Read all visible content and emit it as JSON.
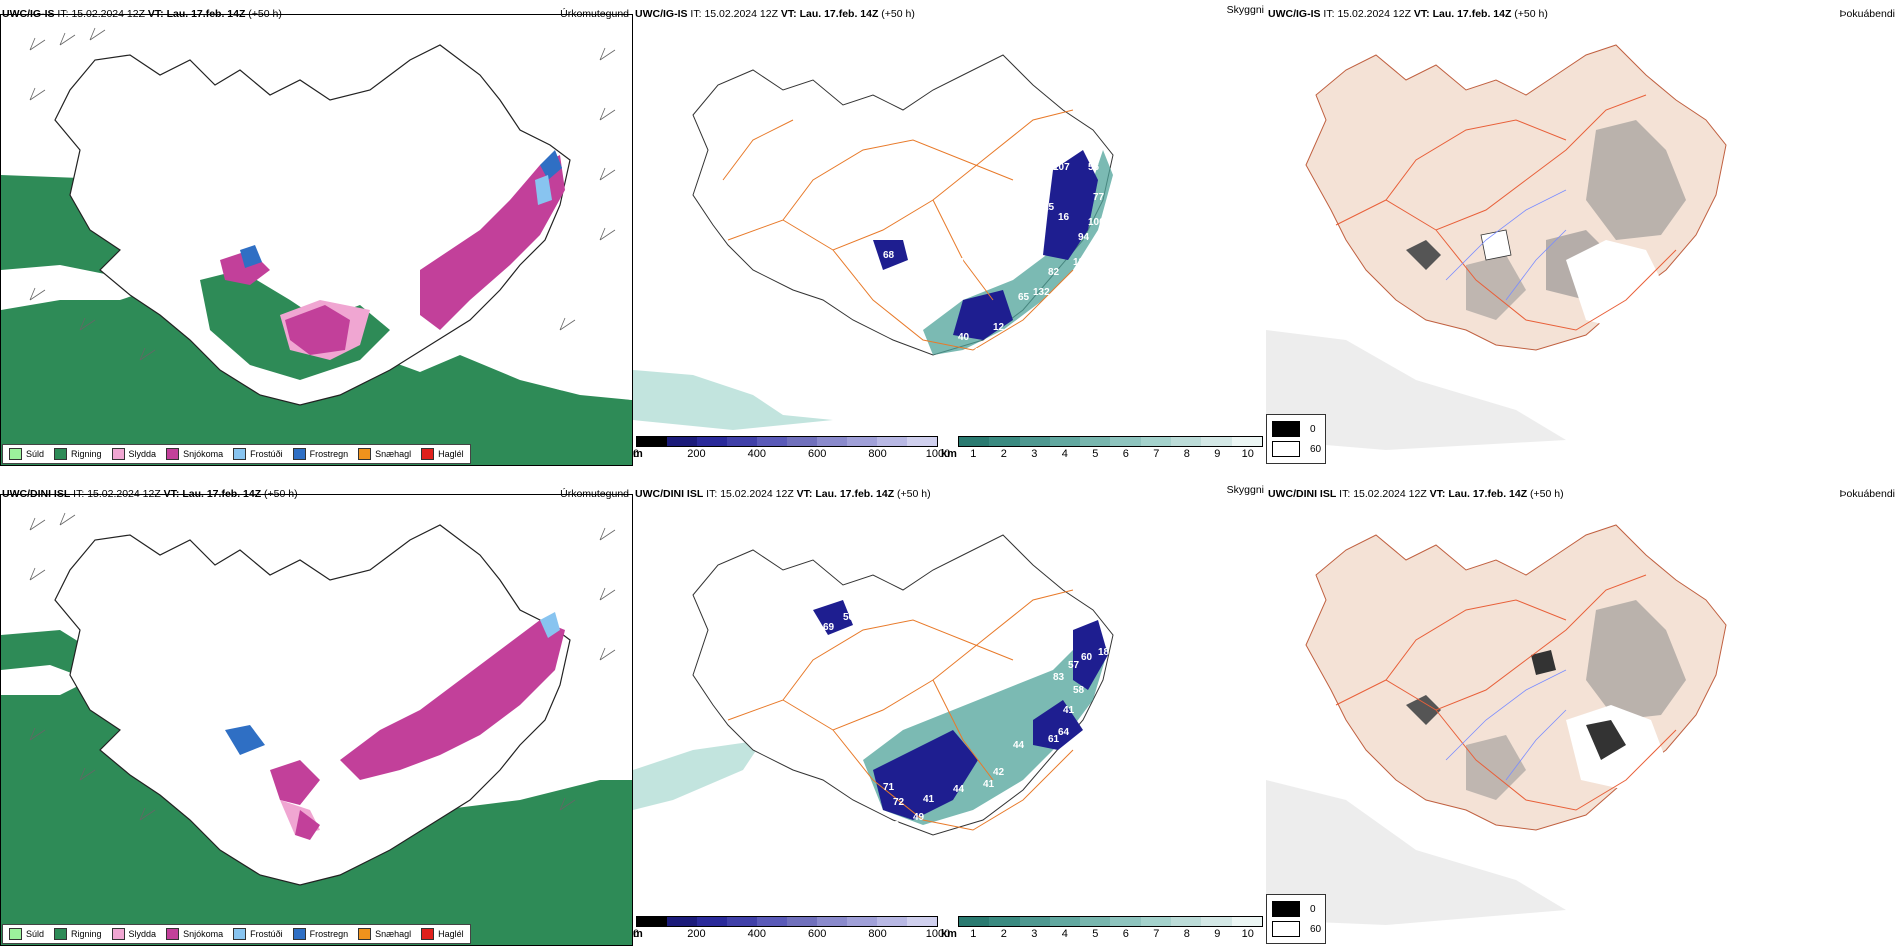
{
  "rows": [
    {
      "model": "UWC/IG-IS",
      "it_label": "IT:",
      "it_value": "15.02.2024 12Z",
      "vt_label": "VT:",
      "vt_value": "Lau. 17.feb. 14Z",
      "lead": "(+50 h)",
      "precip_title": "Úrkomutegund",
      "vis_title": "Skyggni",
      "fog_title": "Þokuábendi",
      "vis_labels": [
        "68",
        "128",
        "84",
        "93",
        "186",
        "120",
        "107",
        "64",
        "56",
        "77",
        "106",
        "94",
        "129",
        "82",
        "132",
        "65",
        "12",
        "44",
        "40",
        "7",
        "13",
        "189",
        "34",
        "22",
        "16",
        "88",
        "16",
        "15"
      ]
    },
    {
      "model": "UWC/DINI ISL",
      "it_label": "IT:",
      "it_value": "15.02.2024 12Z",
      "vt_label": "VT:",
      "vt_value": "Lau. 17.feb. 14Z",
      "lead": "(+50 h)",
      "precip_title": "Úrkomutegund",
      "vis_title": "Skyggni",
      "fog_title": "Þokuábendi",
      "vis_labels": [
        "55",
        "56",
        "69",
        "109",
        "223",
        "38",
        "102",
        "83",
        "57",
        "60",
        "18",
        "58",
        "41",
        "64",
        "61",
        "44",
        "42",
        "41",
        "44",
        "71",
        "72",
        "41",
        "49",
        "53",
        "40",
        "35",
        "72",
        "69",
        "62",
        "91",
        "89",
        "76"
      ]
    }
  ],
  "precip_legend": [
    {
      "label": "Súld",
      "color": "#9cf29c"
    },
    {
      "label": "Rigning",
      "color": "#2e8b57"
    },
    {
      "label": "Slydda",
      "color": "#f0a6d2"
    },
    {
      "label": "Snjókoma",
      "color": "#c2409a"
    },
    {
      "label": "Frostúði",
      "color": "#88c4f0"
    },
    {
      "label": "Frostregn",
      "color": "#2f6fc4"
    },
    {
      "label": "Snæhagl",
      "color": "#f0921c"
    },
    {
      "label": "Haglél",
      "color": "#e0201c"
    }
  ],
  "terrain_scale": {
    "unit": "m",
    "ticks": [
      "0",
      "200",
      "400",
      "600",
      "800",
      "1000"
    ],
    "colors": [
      "#000000",
      "#1b1b7a",
      "#2a2a9a",
      "#4040a8",
      "#5a5ab8",
      "#7070bc",
      "#8a8acc",
      "#a0a0d8",
      "#b8b8e4",
      "#d0d0ee"
    ]
  },
  "vis_scale": {
    "unit": "km",
    "ticks": [
      "1",
      "2",
      "3",
      "4",
      "5",
      "6",
      "7",
      "8",
      "9",
      "10"
    ],
    "colors": [
      "#2a7a70",
      "#3a8a80",
      "#4e9890",
      "#62a8a0",
      "#78b6ae",
      "#8ec4be",
      "#a4d2cc",
      "#bcdcd8",
      "#d4e8e6",
      "#ecf6f4"
    ]
  },
  "fog_scale": {
    "ticks": [
      "0",
      "60"
    ],
    "colors": [
      "#000000",
      "#ffffff"
    ]
  },
  "colors": {
    "rain": "#2e8b57",
    "snow": "#c2409a",
    "sleet": "#f0a6d2",
    "freezing": "#2f6fc4",
    "vis_low": "#1e1e90",
    "vis_mid": "#4fa39a",
    "roads": "#e87a2a",
    "fog_land": "#f4e2d6",
    "fog_grey": "#8a8a8a",
    "rivers": "#7a8cff"
  }
}
